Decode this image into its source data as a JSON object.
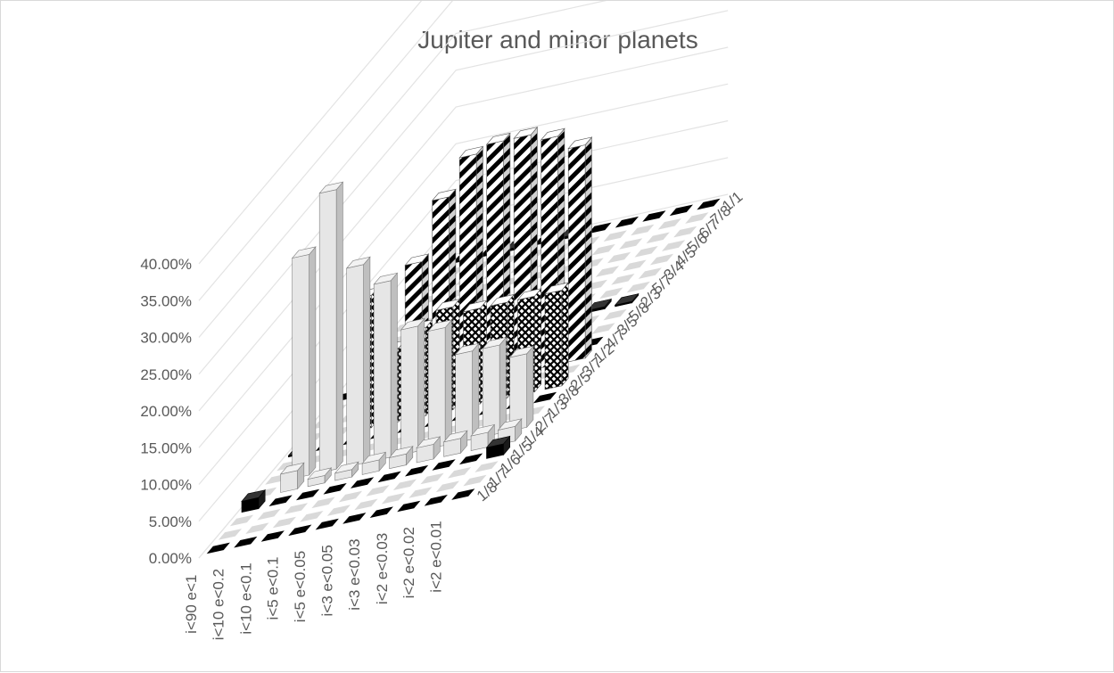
{
  "chart_data": {
    "type": "bar",
    "subtype": "3d-column-grid",
    "title": "Jupiter and minor planets",
    "ylim": [
      0,
      0.4
    ],
    "yticks": [
      "0.00%",
      "5.00%",
      "10.00%",
      "15.00%",
      "20.00%",
      "25.00%",
      "30.00%",
      "35.00%",
      "40.00%"
    ],
    "grid": true,
    "legend": "none",
    "categories": [
      "i<90 e<1",
      "i<10 e<0.2",
      "i<10 e<0.1",
      "i<5 e<0.1",
      "i<5 e<0.05",
      "i<3 e<0.05",
      "i<3 e<0.03",
      "i<2 e<0.03",
      "i<2 e<0.02",
      "i<2 e<0.01"
    ],
    "series_labels": [
      "1/8",
      "1/7",
      "1/6",
      "1/5",
      "1/4",
      "2/7",
      "1/3",
      "3/8",
      "2/5",
      "3/7",
      "1/2",
      "4/7",
      "3/5",
      "5/8",
      "2/3",
      "5/7",
      "3/4",
      "4/5",
      "5/6",
      "6/7",
      "7/8",
      "1/1"
    ],
    "series": [
      {
        "values": [
          0.001,
          0.001,
          0.001,
          0.001,
          0.001,
          0.001,
          0.001,
          0.001,
          0.001,
          0.001
        ]
      },
      {
        "values": [
          0.001,
          0.001,
          0.001,
          0.001,
          0.001,
          0.001,
          0.001,
          0.001,
          0.001,
          0.001
        ]
      },
      {
        "values": [
          0.001,
          0.001,
          0.001,
          0.001,
          0.001,
          0.001,
          0.001,
          0.001,
          0.001,
          0.001
        ]
      },
      {
        "values": [
          0.015,
          0.001,
          0.001,
          0.001,
          0.001,
          0.001,
          0.001,
          0.001,
          0.001,
          0.015
        ]
      },
      {
        "values": [
          0.001,
          0.025,
          0.01,
          0.01,
          0.015,
          0.015,
          0.02,
          0.02,
          0.02,
          0.02
        ]
      },
      {
        "values": [
          0.001,
          0.3,
          0.38,
          0.27,
          0.24,
          0.17,
          0.16,
          0.12,
          0.12,
          0.1
        ]
      },
      {
        "values": [
          0.001,
          0.001,
          0.001,
          0.001,
          0.001,
          0.001,
          0.001,
          0.001,
          0.001,
          0.001
        ]
      },
      {
        "values": [
          0.002,
          0.001,
          0.001,
          0.001,
          0.001,
          0.001,
          0.001,
          0.001,
          0.001,
          0.001
        ]
      },
      {
        "values": [
          0.001,
          0.001,
          0.18,
          0.1,
          0.12,
          0.14,
          0.13,
          0.13,
          0.13,
          0.13
        ]
      },
      {
        "values": [
          0.001,
          0.001,
          0.001,
          0.001,
          0.001,
          0.001,
          0.001,
          0.001,
          0.001,
          0.001
        ]
      },
      {
        "values": [
          0.001,
          0.001,
          0.001,
          0.18,
          0.26,
          0.31,
          0.32,
          0.32,
          0.31,
          0.29
        ]
      },
      {
        "values": [
          0.001,
          0.001,
          0.001,
          0.001,
          0.001,
          0.001,
          0.001,
          0.001,
          0.001,
          0.001
        ]
      },
      {
        "values": [
          0.001,
          0.001,
          0.001,
          0.001,
          0.001,
          0.001,
          0.001,
          0.001,
          0.001,
          0.001
        ]
      },
      {
        "values": [
          0.001,
          0.001,
          0.001,
          0.001,
          0.001,
          0.001,
          0.04,
          0.04,
          0.001,
          0.001
        ]
      },
      {
        "values": [
          0.001,
          0.001,
          0.001,
          0.001,
          0.001,
          0.001,
          0.003,
          0.003,
          0.003,
          0.002
        ]
      },
      {
        "values": [
          0.001,
          0.001,
          0.001,
          0.001,
          0.001,
          0.001,
          0.001,
          0.001,
          0.001,
          0.001
        ]
      },
      {
        "values": [
          0.001,
          0.001,
          0.001,
          0.001,
          0.001,
          0.001,
          0.001,
          0.001,
          0.001,
          0.001
        ]
      },
      {
        "values": [
          0.001,
          0.001,
          0.001,
          0.001,
          0.001,
          0.001,
          0.001,
          0.001,
          0.001,
          0.001
        ]
      },
      {
        "values": [
          0.001,
          0.001,
          0.001,
          0.001,
          0.001,
          0.001,
          0.001,
          0.001,
          0.001,
          0.001
        ]
      },
      {
        "values": [
          0.001,
          0.001,
          0.001,
          0.001,
          0.001,
          0.001,
          0.001,
          0.001,
          0.001,
          0.001
        ]
      },
      {
        "values": [
          0.001,
          0.001,
          0.001,
          0.001,
          0.001,
          0.001,
          0.001,
          0.001,
          0.001,
          0.001
        ]
      },
      {
        "values": [
          0.001,
          0.001,
          0.003,
          0.001,
          0.003,
          0.001,
          0.001,
          0.001,
          0.001,
          0.001
        ]
      }
    ],
    "series_styles": [
      "black",
      "gray",
      "gray",
      "black",
      "light",
      "light",
      "gray",
      "black",
      "light",
      "gray",
      "hatch",
      "black",
      "gray",
      "hatch",
      "black",
      "gray",
      "gray",
      "gray",
      "gray",
      "gray",
      "gray",
      "black"
    ],
    "colors": {
      "black": "#000000",
      "gray_top": "#d9d9d9",
      "light_top": "#f2f2f2",
      "light_side": "#bfbfbf",
      "light_face": "#e6e6e6",
      "edge": "#7f7f7f",
      "grid": "#e3e3e3",
      "text": "#595959"
    },
    "patterns": {
      "hatch": "diagonal-stripes",
      "crosshatch": "cross-hatch"
    }
  }
}
